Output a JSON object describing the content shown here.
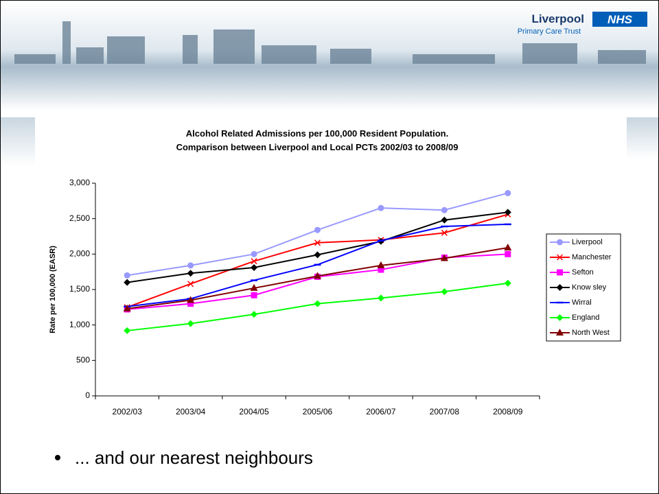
{
  "slide": {
    "logo_name": "Liverpool",
    "logo_badge": "NHS",
    "logo_subtitle": "Primary Care Trust",
    "bullet": "... and our nearest neighbours"
  },
  "chart_data": {
    "type": "line",
    "title": [
      "Alcohol Related Admissions per 100,000 Resident Population.",
      "Comparison between Liverpool and Local PCTs 2002/03 to 2008/09"
    ],
    "y_label": "Rate per 100,000 (EASR)",
    "categories": [
      "2002/03",
      "2003/04",
      "2004/05",
      "2005/06",
      "2006/07",
      "2007/08",
      "2008/09"
    ],
    "ylim": [
      0,
      3000
    ],
    "yticks": [
      0,
      500,
      {
        "value": 1000,
        "label": "1,000"
      },
      {
        "value": 1500,
        "label": "1,500"
      },
      {
        "value": 2000,
        "label": "2,000"
      },
      {
        "value": 2500,
        "label": "2,500"
      },
      {
        "value": 3000,
        "label": "3,000"
      }
    ],
    "grid": false,
    "legend": "right",
    "series": [
      {
        "name": "Liverpool",
        "color": "#9999ff",
        "marker": "circle",
        "values": [
          1700,
          1840,
          2000,
          2340,
          2650,
          2620,
          2860
        ]
      },
      {
        "name": "Manchester",
        "color": "#ff0000",
        "marker": "x",
        "values": [
          1250,
          1580,
          1900,
          2160,
          2200,
          2300,
          2560
        ]
      },
      {
        "name": "Sefton",
        "color": "#ff00ff",
        "marker": "square",
        "values": [
          1220,
          1300,
          1420,
          1680,
          1780,
          1950,
          2000
        ]
      },
      {
        "name": "Know sley",
        "color": "#000000",
        "marker": "diamond",
        "values": [
          1600,
          1730,
          1810,
          1990,
          2180,
          2480,
          2590
        ]
      },
      {
        "name": "Wirral",
        "color": "#0000ff",
        "marker": "dash",
        "values": [
          1260,
          1370,
          1630,
          1850,
          2190,
          2390,
          2420
        ]
      },
      {
        "name": "England",
        "color": "#00ff00",
        "marker": "diamond",
        "values": [
          920,
          1020,
          1150,
          1300,
          1380,
          1470,
          1590
        ]
      },
      {
        "name": "North West",
        "color": "#800000",
        "marker": "triangle",
        "values": [
          1230,
          1350,
          1520,
          1690,
          1840,
          1940,
          2090
        ]
      }
    ]
  }
}
